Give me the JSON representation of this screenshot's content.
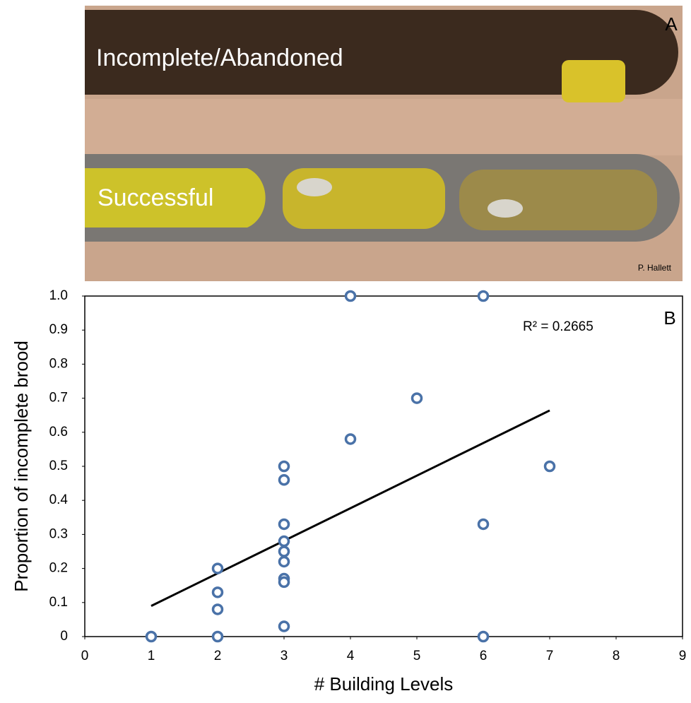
{
  "photo": {
    "top_label": "Incomplete/Abandoned",
    "bottom_label": "Successful",
    "panel_label": "A",
    "credit": "P. Hallett"
  },
  "chart_data": {
    "type": "scatter",
    "panel_label": "B",
    "annotation": "R² = 0.2665",
    "xlabel": "# Building Levels",
    "ylabel": "Proportion of incomplete brood",
    "x": [
      1,
      2,
      2,
      2,
      2,
      3,
      3,
      3,
      3,
      3,
      3,
      3,
      3,
      3,
      4,
      4,
      5,
      6,
      6,
      6,
      7
    ],
    "y": [
      0,
      0.2,
      0.13,
      0.08,
      0,
      0.5,
      0.46,
      0.33,
      0.28,
      0.25,
      0.22,
      0.17,
      0.16,
      0.03,
      1.0,
      0.58,
      0.7,
      1.0,
      0.33,
      0,
      0.5
    ],
    "color": "#4a72a8",
    "trendline": {
      "x": [
        1,
        7
      ],
      "y": [
        0.09,
        0.664
      ],
      "color": "#000000"
    },
    "xlim": [
      0,
      9
    ],
    "ylim": [
      0,
      1
    ],
    "xticks": [
      0,
      1,
      2,
      3,
      4,
      5,
      6,
      7,
      8,
      9
    ],
    "yticks": [
      0,
      0.1,
      0.2,
      0.3,
      0.4,
      0.5,
      0.6,
      0.7,
      0.8,
      0.9,
      {
        "value": 1,
        "label": "1.0"
      }
    ]
  }
}
